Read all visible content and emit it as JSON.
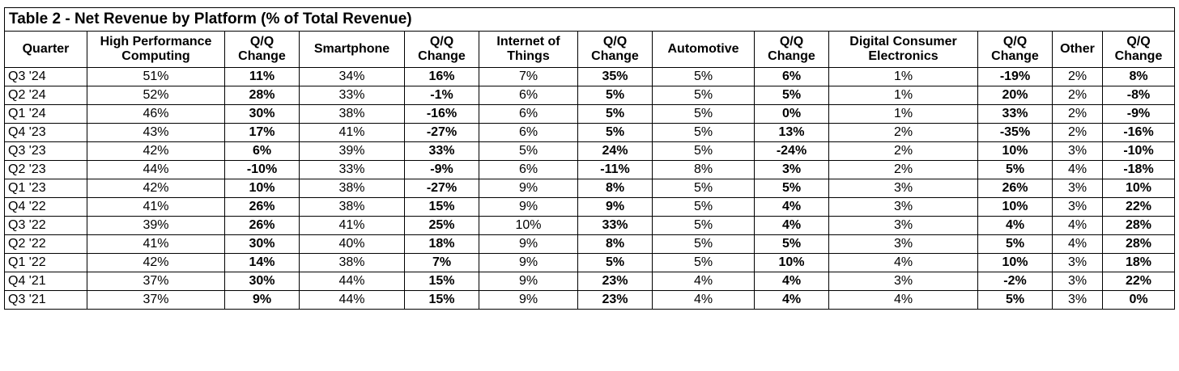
{
  "title": "Table 2 - Net Revenue by Platform (% of Total Revenue)",
  "columns": [
    "Quarter",
    "High Performance Computing",
    "Q/Q Change",
    "Smartphone",
    "Q/Q Change",
    "Internet of Things",
    "Q/Q Change",
    "Automotive",
    "Q/Q Change",
    "Digital Consumer Electronics",
    "Q/Q Change",
    "Other",
    "Q/Q Change"
  ],
  "rows": [
    [
      "Q3 '24",
      "51%",
      "11%",
      "34%",
      "16%",
      "7%",
      "35%",
      "5%",
      "6%",
      "1%",
      "-19%",
      "2%",
      "8%"
    ],
    [
      "Q2 '24",
      "52%",
      "28%",
      "33%",
      "-1%",
      "6%",
      "5%",
      "5%",
      "5%",
      "1%",
      "20%",
      "2%",
      "-8%"
    ],
    [
      "Q1 '24",
      "46%",
      "30%",
      "38%",
      "-16%",
      "6%",
      "5%",
      "5%",
      "0%",
      "1%",
      "33%",
      "2%",
      "-9%"
    ],
    [
      "Q4 '23",
      "43%",
      "17%",
      "41%",
      "-27%",
      "6%",
      "5%",
      "5%",
      "13%",
      "2%",
      "-35%",
      "2%",
      "-16%"
    ],
    [
      "Q3 '23",
      "42%",
      "6%",
      "39%",
      "33%",
      "5%",
      "24%",
      "5%",
      "-24%",
      "2%",
      "10%",
      "3%",
      "-10%"
    ],
    [
      "Q2 '23",
      "44%",
      "-10%",
      "33%",
      "-9%",
      "6%",
      "-11%",
      "8%",
      "3%",
      "2%",
      "5%",
      "4%",
      "-18%"
    ],
    [
      "Q1 '23",
      "42%",
      "10%",
      "38%",
      "-27%",
      "9%",
      "8%",
      "5%",
      "5%",
      "3%",
      "26%",
      "3%",
      "10%"
    ],
    [
      "Q4 '22",
      "41%",
      "26%",
      "38%",
      "15%",
      "9%",
      "9%",
      "5%",
      "4%",
      "3%",
      "10%",
      "3%",
      "22%"
    ],
    [
      "Q3 '22",
      "39%",
      "26%",
      "41%",
      "25%",
      "10%",
      "33%",
      "5%",
      "4%",
      "3%",
      "4%",
      "4%",
      "28%"
    ],
    [
      "Q2 '22",
      "41%",
      "30%",
      "40%",
      "18%",
      "9%",
      "8%",
      "5%",
      "5%",
      "3%",
      "5%",
      "4%",
      "28%"
    ],
    [
      "Q1 '22",
      "42%",
      "14%",
      "38%",
      "7%",
      "9%",
      "5%",
      "5%",
      "10%",
      "4%",
      "10%",
      "3%",
      "18%"
    ],
    [
      "Q4 '21",
      "37%",
      "30%",
      "44%",
      "15%",
      "9%",
      "23%",
      "4%",
      "4%",
      "3%",
      "-2%",
      "3%",
      "22%"
    ],
    [
      "Q3 '21",
      "37%",
      "9%",
      "44%",
      "15%",
      "9%",
      "23%",
      "4%",
      "4%",
      "4%",
      "5%",
      "3%",
      "0%"
    ]
  ]
}
